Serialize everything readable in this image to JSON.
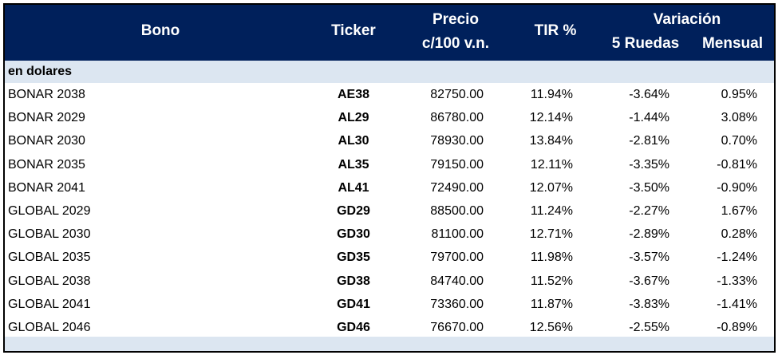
{
  "header": {
    "bono": "Bono",
    "ticker": "Ticker",
    "precio_line1": "Precio",
    "precio_line2": "c/100 v.n.",
    "tir": "TIR %",
    "variacion": "Variación",
    "cinco_ruedas": "5 Ruedas",
    "mensual": "Mensual"
  },
  "section_label": "en dolares",
  "rows": [
    {
      "bono": "BONAR 2038",
      "ticker": "AE38",
      "precio": "82750.00",
      "tir": "11.94%",
      "var5": "-3.64%",
      "mensual": "0.95%"
    },
    {
      "bono": "BONAR 2029",
      "ticker": "AL29",
      "precio": "86780.00",
      "tir": "12.14%",
      "var5": "-1.44%",
      "mensual": "3.08%"
    },
    {
      "bono": "BONAR 2030",
      "ticker": "AL30",
      "precio": "78930.00",
      "tir": "13.84%",
      "var5": "-2.81%",
      "mensual": "0.70%"
    },
    {
      "bono": "BONAR 2035",
      "ticker": "AL35",
      "precio": "79150.00",
      "tir": "12.11%",
      "var5": "-3.35%",
      "mensual": "-0.81%"
    },
    {
      "bono": "BONAR 2041",
      "ticker": "AL41",
      "precio": "72490.00",
      "tir": "12.07%",
      "var5": "-3.50%",
      "mensual": "-0.90%"
    },
    {
      "bono": "GLOBAL 2029",
      "ticker": "GD29",
      "precio": "88500.00",
      "tir": "11.24%",
      "var5": "-2.27%",
      "mensual": "1.67%"
    },
    {
      "bono": "GLOBAL 2030",
      "ticker": "GD30",
      "precio": "81100.00",
      "tir": "12.71%",
      "var5": "-2.89%",
      "mensual": "0.28%"
    },
    {
      "bono": "GLOBAL 2035",
      "ticker": "GD35",
      "precio": "79700.00",
      "tir": "11.98%",
      "var5": "-3.57%",
      "mensual": "-1.24%"
    },
    {
      "bono": "GLOBAL 2038",
      "ticker": "GD38",
      "precio": "84740.00",
      "tir": "11.52%",
      "var5": "-3.67%",
      "mensual": "-1.33%"
    },
    {
      "bono": "GLOBAL 2041",
      "ticker": "GD41",
      "precio": "73360.00",
      "tir": "11.87%",
      "var5": "-3.83%",
      "mensual": "-1.41%"
    },
    {
      "bono": "GLOBAL 2046",
      "ticker": "GD46",
      "precio": "76670.00",
      "tir": "12.56%",
      "var5": "-2.55%",
      "mensual": "-0.89%"
    }
  ],
  "colors": {
    "header_bg": "#00205b",
    "header_text": "#ffffff",
    "section_bg": "#dce6f1"
  }
}
